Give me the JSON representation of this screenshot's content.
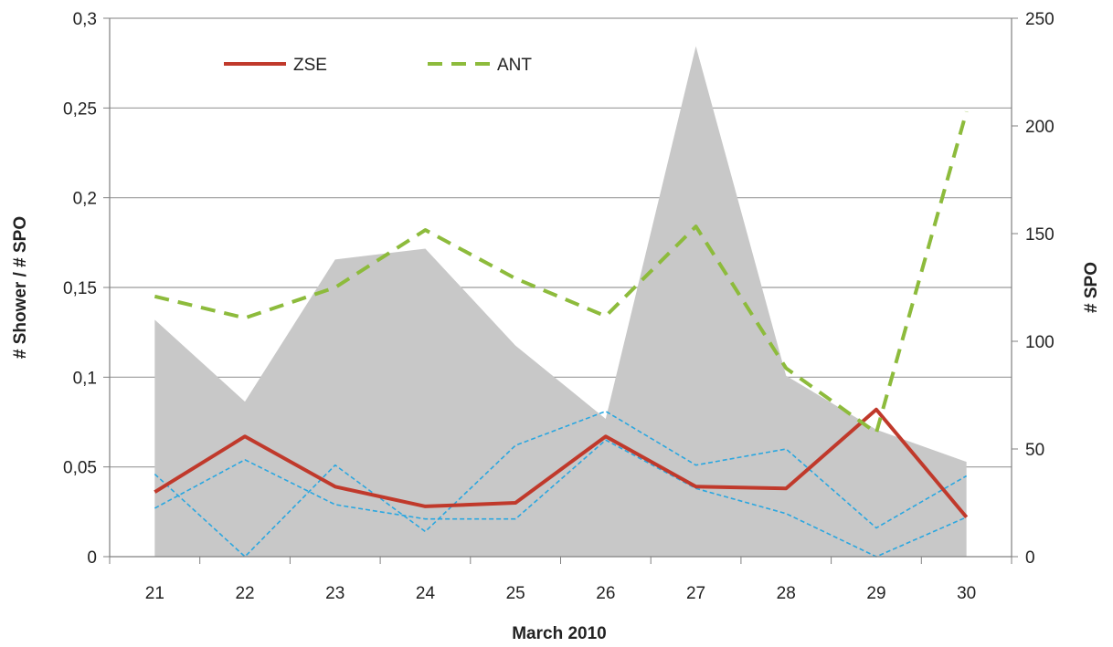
{
  "chart_data": {
    "type": "line",
    "xlabel": "March 2010",
    "ylabel_left": "# Shower / # SPO",
    "ylabel_right": "# SPO",
    "categories": [
      "21",
      "22",
      "23",
      "24",
      "25",
      "26",
      "27",
      "28",
      "29",
      "30"
    ],
    "ylim_left": [
      0,
      0.3
    ],
    "ylim_right": [
      0,
      250
    ],
    "y_ticks_left": [
      "0",
      "0,05",
      "0,1",
      "0,15",
      "0,2",
      "0,25",
      "0,3"
    ],
    "y_ticks_right": [
      "0",
      "50",
      "100",
      "150",
      "200",
      "250"
    ],
    "grid": true,
    "legend_position": "top-left",
    "area_series": {
      "axis": "right",
      "color": "#c8c8c8",
      "values": [
        110,
        72,
        138,
        143,
        98,
        64,
        237,
        84,
        59,
        44
      ]
    },
    "series": [
      {
        "name": "ZSE",
        "axis": "left",
        "style": "solid",
        "color": "#c0392b",
        "values": [
          0.036,
          0.067,
          0.039,
          0.028,
          0.03,
          0.067,
          0.039,
          0.038,
          0.082,
          0.022
        ]
      },
      {
        "name": "ANT",
        "axis": "left",
        "style": "dashed",
        "color": "#8dbb3c",
        "values": [
          0.145,
          0.133,
          0.15,
          0.182,
          0.155,
          0.134,
          0.184,
          0.105,
          0.069,
          0.248
        ]
      }
    ],
    "bounds": [
      {
        "axis": "left",
        "style": "dotted",
        "color": "#2aa7e0",
        "values": [
          0.046,
          0.0,
          0.051,
          0.014,
          0.062,
          0.081,
          0.051,
          0.06,
          0.016,
          0.045
        ]
      },
      {
        "axis": "left",
        "style": "dotted",
        "color": "#2aa7e0",
        "values": [
          0.027,
          0.054,
          0.029,
          0.021,
          0.021,
          0.065,
          0.038,
          0.024,
          0.0,
          0.022
        ]
      }
    ]
  }
}
